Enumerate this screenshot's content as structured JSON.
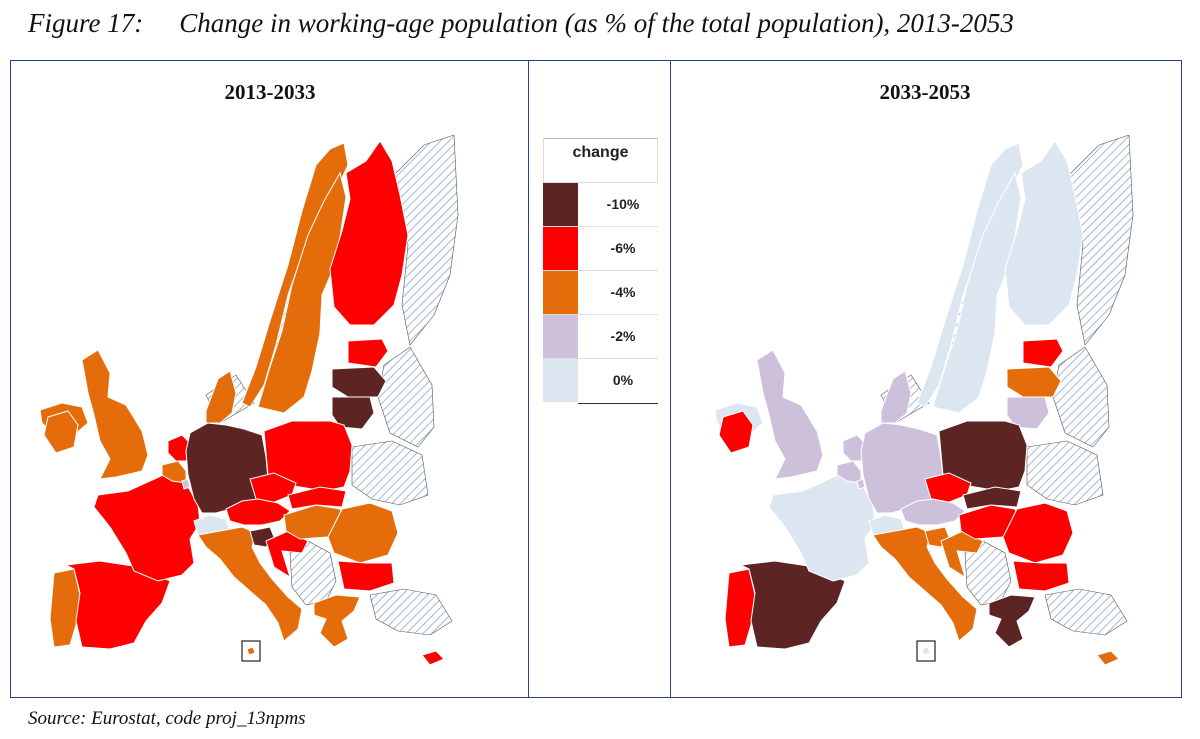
{
  "figure": {
    "number": "Figure  17:",
    "title": "Change in working-age population (as % of the total population), 2013-2053"
  },
  "panels": [
    {
      "title": "2013-2033"
    },
    {
      "title": "2033-2053"
    }
  ],
  "legend": {
    "title": "change",
    "items": [
      {
        "label": "-10%",
        "color": "#5c2524"
      },
      {
        "label": "-6%",
        "color": "#ff0000"
      },
      {
        "label": "-4%",
        "color": "#e46c0a"
      },
      {
        "label": "-2%",
        "color": "#ccc0da"
      },
      {
        "label": "0%",
        "color": "#dce6f1"
      }
    ]
  },
  "colors": {
    "non_eu": "#dce6f1",
    "hatch": "#8aa6c6",
    "border": "#2c3e8c",
    "country_border": "#ffffff"
  },
  "source": "Source: Eurostat, code proj_13npms",
  "countries_2013_2033": {
    "Iceland": "-4%",
    "Ireland": "-4%",
    "United Kingdom": "-4%",
    "Portugal": "-4%",
    "Spain": "-6%",
    "France": "-6%",
    "Belgium": "-4%",
    "Netherlands": "-6%",
    "Luxembourg": "-2%",
    "Germany": "-10%",
    "Denmark": "-4%",
    "Norway": "-4%",
    "Sweden": "-4%",
    "Finland": "-6%",
    "Estonia": "-6%",
    "Latvia": "-10%",
    "Lithuania": "-10%",
    "Poland": "-6%",
    "Czech Republic": "-6%",
    "Austria": "-6%",
    "Switzerland": "0%",
    "Italy": "-4%",
    "Slovenia": "-10%",
    "Croatia": "-6%",
    "Hungary": "-4%",
    "Slovakia": "-6%",
    "Romania": "-4%",
    "Bulgaria": "-6%",
    "Greece": "-4%",
    "Cyprus": "-6%",
    "Malta": "-4%"
  },
  "countries_2033_2053": {
    "Iceland": "0%",
    "Ireland": "-6%",
    "United Kingdom": "-2%",
    "Portugal": "-6%",
    "Spain": "-10%",
    "France": "0%",
    "Belgium": "-2%",
    "Netherlands": "-2%",
    "Luxembourg": "-2%",
    "Germany": "-2%",
    "Denmark": "-2%",
    "Norway": "0%",
    "Sweden": "0%",
    "Finland": "0%",
    "Estonia": "-6%",
    "Latvia": "-4%",
    "Lithuania": "-2%",
    "Poland": "-10%",
    "Czech Republic": "-6%",
    "Austria": "-2%",
    "Switzerland": "0%",
    "Italy": "-4%",
    "Slovenia": "-4%",
    "Croatia": "-4%",
    "Hungary": "-6%",
    "Slovakia": "-10%",
    "Romania": "-6%",
    "Bulgaria": "-6%",
    "Greece": "-10%",
    "Cyprus": "-4%",
    "Malta": "0%"
  }
}
